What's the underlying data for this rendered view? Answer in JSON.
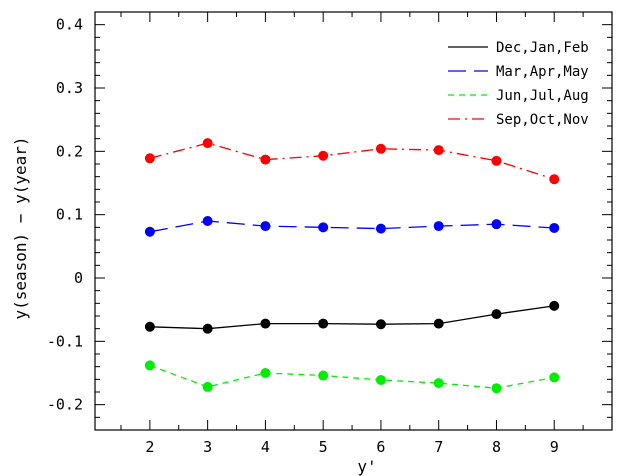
{
  "chart_data": {
    "type": "line",
    "x": [
      2,
      3,
      4,
      5,
      6,
      7,
      8,
      9
    ],
    "xlabel": "y'",
    "ylabel": "y(season)  −  y(year)",
    "xlim": [
      1.05,
      10.0
    ],
    "ylim": [
      -0.24,
      0.42
    ],
    "xticks": [
      2,
      3,
      4,
      5,
      6,
      7,
      8,
      9
    ],
    "yticks": [
      -0.2,
      -0.1,
      0,
      0.1,
      0.2,
      0.3,
      0.4
    ],
    "ytick_labels": [
      "-0.2",
      "-0.1",
      "0",
      "0.1",
      "0.2",
      "0.3",
      "0.4"
    ],
    "grid": false,
    "legend_position": "top-right",
    "series": [
      {
        "name": "Dec,Jan,Feb",
        "color": "#000000",
        "dash": "solid",
        "values": [
          -0.077,
          -0.08,
          -0.072,
          -0.072,
          -0.073,
          -0.072,
          -0.057,
          -0.044
        ]
      },
      {
        "name": "Mar,Apr,May",
        "color": "#0000ff",
        "dash": "long-dash",
        "values": [
          0.073,
          0.09,
          0.082,
          0.08,
          0.078,
          0.082,
          0.085,
          0.079
        ]
      },
      {
        "name": "Jun,Jul,Aug",
        "color": "#00ee00",
        "dash": "short-dash",
        "values": [
          -0.138,
          -0.172,
          -0.15,
          -0.154,
          -0.161,
          -0.166,
          -0.174,
          -0.157
        ]
      },
      {
        "name": "Sep,Oct,Nov",
        "color": "#ff0000",
        "dash": "dash-dot",
        "values": [
          0.189,
          0.213,
          0.187,
          0.193,
          0.204,
          0.202,
          0.185,
          0.156
        ]
      }
    ]
  }
}
